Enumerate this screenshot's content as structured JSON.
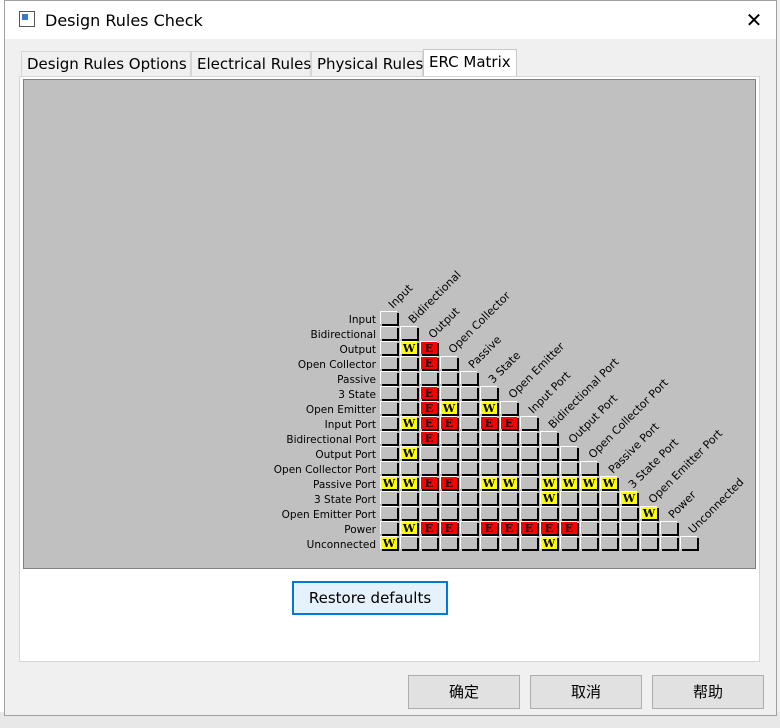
{
  "window": {
    "title": "Design Rules Check",
    "close_glyph": "✕"
  },
  "tabs": [
    {
      "label": "Design Rules Options"
    },
    {
      "label": "Electrical Rules"
    },
    {
      "label": "Physical Rules"
    },
    {
      "label": "ERC Matrix"
    }
  ],
  "matrix": {
    "labels": [
      "Input",
      "Bidirectional",
      "Output",
      "Open Collector",
      "Passive",
      "3 State",
      "Open Emitter",
      "Input Port",
      "Bidirectional Port",
      "Output Port",
      "Open Collector Port",
      "Passive Port",
      "3 State Port",
      "Open Emitter Port",
      "Power",
      "Unconnected"
    ],
    "cells": [
      "",
      "..",
      ".WE",
      "..E.",
      ".....",
      "..E...",
      "..EW.W.",
      ".WEE.EE.",
      "..E......",
      ".W........",
      "...........",
      "WWEE.WW.WWWW",
      "........W...W",
      ".............W",
      ".WEE.EEEEE......",
      "W.......W......."
    ],
    "warning_glyph": "W",
    "error_glyph": "E",
    "colors": {
      "warning": "#ffff00",
      "error": "#ff0000",
      "ok": "#c0c0c0",
      "background": "#c0c0c0"
    }
  },
  "buttons": {
    "restore_defaults": "Restore defaults",
    "ok": "确定",
    "cancel": "取消",
    "help": "帮助"
  }
}
